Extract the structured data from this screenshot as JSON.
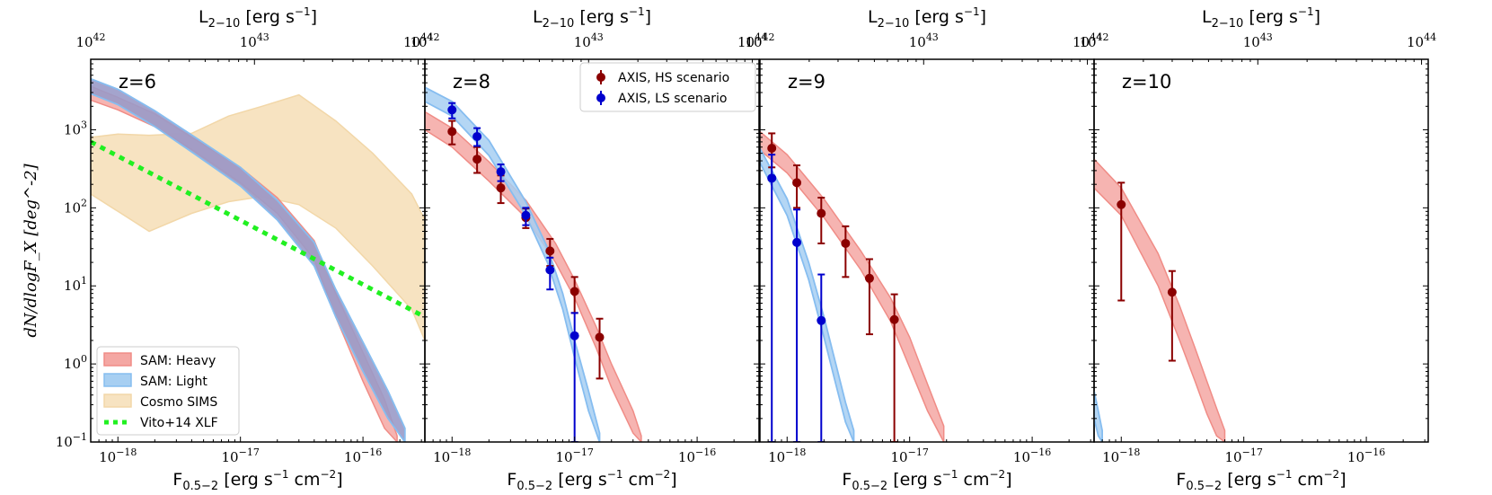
{
  "chart_data": {
    "type": "line",
    "title": "",
    "ylabel": "dN/dlogF_X [deg^-2]",
    "yscale": "log",
    "ylim": [
      0.1,
      8000
    ],
    "xscale": "log",
    "xlim": [
      6e-19,
      3.2e-16
    ],
    "top_xlim": [
      1e+42,
      1e+44
    ],
    "xlabel_base": "F",
    "xlabel_sub": "0.5−2",
    "xlabel_units": " [erg s",
    "xlabel_units2": " cm",
    "top_label_base": "L",
    "top_label_sub": "2−10",
    "top_label_units": " [erg s",
    "yticks": [
      {
        "value": 0.1,
        "base": "10",
        "exp": "−1"
      },
      {
        "value": 1,
        "base": "10",
        "exp": "0"
      },
      {
        "value": 10,
        "base": "10",
        "exp": "1"
      },
      {
        "value": 100,
        "base": "10",
        "exp": "2"
      },
      {
        "value": 1000,
        "base": "10",
        "exp": "3"
      }
    ],
    "xticks": [
      {
        "value": 1e-18,
        "base": "10",
        "exp": "−18"
      },
      {
        "value": 1e-17,
        "base": "10",
        "exp": "−17"
      },
      {
        "value": 1e-16,
        "base": "10",
        "exp": "−16"
      }
    ],
    "top_ticks": [
      {
        "value": 1e+42,
        "base": "10",
        "exp": "42"
      },
      {
        "value": 1e+43,
        "base": "10",
        "exp": "43"
      },
      {
        "value": 1e+44,
        "base": "10",
        "exp": "44"
      }
    ],
    "panels": [
      {
        "label": "z=6",
        "sam_heavy": {
          "x": [
            6e-19,
            1e-18,
            2e-18,
            4e-18,
            1e-17,
            2e-17,
            4e-17,
            6e-17,
            1e-16,
            1.5e-16,
            1.9e-16
          ],
          "lo": [
            2400,
            1800,
            1100,
            560,
            210,
            85,
            22,
            4,
            0.6,
            0.15,
            0.1
          ],
          "hi": [
            3600,
            2600,
            1600,
            800,
            330,
            135,
            38,
            8,
            1.4,
            0.35,
            0.12
          ]
        },
        "sam_light": {
          "x": [
            6e-19,
            1e-18,
            2e-18,
            4e-18,
            1e-17,
            2e-17,
            4e-17,
            6e-17,
            1e-16,
            1.6e-16,
            2.2e-16
          ],
          "lo": [
            2900,
            2100,
            1100,
            520,
            190,
            70,
            18,
            4,
            0.8,
            0.2,
            0.1
          ],
          "hi": [
            4500,
            3300,
            1750,
            860,
            330,
            125,
            36,
            9,
            1.9,
            0.45,
            0.15
          ]
        },
        "cosmo_sims": {
          "x": [
            6e-19,
            1e-18,
            1.8e-18,
            4e-18,
            8e-18,
            1.5e-17,
            3e-17,
            6e-17,
            1.2e-16,
            2.5e-16,
            3.2e-16
          ],
          "lo": [
            150,
            90,
            50,
            85,
            120,
            140,
            110,
            55,
            18,
            5,
            2
          ],
          "hi": [
            800,
            880,
            850,
            900,
            1500,
            2000,
            2800,
            1300,
            500,
            150,
            70
          ]
        },
        "vito_xlf": {
          "x": [
            6e-19,
            3.2e-16
          ],
          "y": [
            700,
            4
          ]
        }
      },
      {
        "label": "z=8",
        "sam_heavy": {
          "x": [
            6e-19,
            1e-18,
            2e-18,
            4e-18,
            7e-18,
            1e-17,
            1.5e-17,
            2e-17,
            3e-17,
            3.5e-17
          ],
          "lo": [
            1000,
            600,
            220,
            75,
            20,
            7,
            1.6,
            0.5,
            0.13,
            0.1
          ],
          "hi": [
            1700,
            1050,
            390,
            125,
            35,
            12,
            3,
            1,
            0.25,
            0.12
          ]
        },
        "sam_light": {
          "x": [
            6e-19,
            1e-18,
            2e-18,
            4e-18,
            6e-18,
            8e-18,
            1e-17,
            1.3e-17,
            1.6e-17
          ],
          "lo": [
            2300,
            1500,
            470,
            80,
            20,
            5,
            1.2,
            0.25,
            0.1
          ],
          "hi": [
            3500,
            2300,
            730,
            120,
            31,
            8,
            2,
            0.45,
            0.13
          ]
        },
        "points": [
          {
            "series": "AXIS, HS scenario",
            "x": 1e-18,
            "y": 950,
            "lo": 650,
            "hi": 1300
          },
          {
            "series": "AXIS, HS scenario",
            "x": 1.6e-18,
            "y": 420,
            "lo": 280,
            "hi": 600
          },
          {
            "series": "AXIS, HS scenario",
            "x": 2.5e-18,
            "y": 180,
            "lo": 115,
            "hi": 260
          },
          {
            "series": "AXIS, HS scenario",
            "x": 4e-18,
            "y": 75,
            "lo": 55,
            "hi": 98
          },
          {
            "series": "AXIS, HS scenario",
            "x": 6.3e-18,
            "y": 28,
            "lo": 18,
            "hi": 40
          },
          {
            "series": "AXIS, HS scenario",
            "x": 1e-17,
            "y": 8.5,
            "lo": 4.5,
            "hi": 13
          },
          {
            "series": "AXIS, HS scenario",
            "x": 1.6e-17,
            "y": 2.2,
            "lo": 0.65,
            "hi": 3.8
          },
          {
            "series": "AXIS, LS scenario",
            "x": 1e-18,
            "y": 1800,
            "lo": 1400,
            "hi": 2200
          },
          {
            "series": "AXIS, LS scenario",
            "x": 1.6e-18,
            "y": 820,
            "lo": 620,
            "hi": 1050
          },
          {
            "series": "AXIS, LS scenario",
            "x": 2.5e-18,
            "y": 290,
            "lo": 220,
            "hi": 360
          },
          {
            "series": "AXIS, LS scenario",
            "x": 4e-18,
            "y": 80,
            "lo": 60,
            "hi": 100
          },
          {
            "series": "AXIS, LS scenario",
            "x": 6.3e-18,
            "y": 16,
            "lo": 9,
            "hi": 23
          },
          {
            "series": "AXIS, LS scenario",
            "x": 1e-17,
            "y": 2.3,
            "lo": 0.1,
            "hi": 4.5
          }
        ]
      },
      {
        "label": "z=9",
        "sam_heavy": {
          "x": [
            6e-19,
            1e-18,
            2e-18,
            4e-18,
            7e-18,
            1e-17,
            1.4e-17,
            1.9e-17
          ],
          "lo": [
            550,
            280,
            75,
            16,
            3.5,
            0.9,
            0.25,
            0.1
          ],
          "hi": [
            950,
            480,
            130,
            28,
            7,
            2.2,
            0.55,
            0.16
          ]
        },
        "sam_light": {
          "x": [
            6e-19,
            1e-18,
            1.5e-18,
            2e-18,
            2.5e-18,
            3e-18,
            3.5e-18
          ],
          "lo": [
            380,
            80,
            12,
            2.2,
            0.55,
            0.18,
            0.1
          ],
          "hi": [
            580,
            130,
            20,
            4,
            1,
            0.32,
            0.14
          ]
        },
        "points": [
          {
            "series": "AXIS, HS scenario",
            "x": 7.5e-19,
            "y": 580,
            "lo": 330,
            "hi": 900
          },
          {
            "series": "AXIS, HS scenario",
            "x": 1.2e-18,
            "y": 210,
            "lo": 100,
            "hi": 350
          },
          {
            "series": "AXIS, HS scenario",
            "x": 1.9e-18,
            "y": 85,
            "lo": 35,
            "hi": 135
          },
          {
            "series": "AXIS, HS scenario",
            "x": 3e-18,
            "y": 35,
            "lo": 13,
            "hi": 58
          },
          {
            "series": "AXIS, HS scenario",
            "x": 4.7e-18,
            "y": 12.5,
            "lo": 2.4,
            "hi": 22
          },
          {
            "series": "AXIS, HS scenario",
            "x": 7.5e-18,
            "y": 3.7,
            "lo": 0.1,
            "hi": 7.8
          },
          {
            "series": "AXIS, LS scenario",
            "x": 7.5e-19,
            "y": 240,
            "lo": 0.1,
            "hi": 480
          },
          {
            "series": "AXIS, LS scenario",
            "x": 1.2e-18,
            "y": 36,
            "lo": 0.1,
            "hi": 95
          },
          {
            "series": "AXIS, LS scenario",
            "x": 1.9e-18,
            "y": 3.6,
            "lo": 0.1,
            "hi": 14
          }
        ]
      },
      {
        "label": "z=10",
        "sam_heavy": {
          "x": [
            6e-19,
            1e-18,
            2e-18,
            3e-18,
            4e-18,
            5e-18,
            6e-18,
            7e-18
          ],
          "lo": [
            180,
            80,
            10,
            2,
            0.6,
            0.23,
            0.12,
            0.1
          ],
          "hi": [
            420,
            180,
            26,
            5.5,
            1.6,
            0.6,
            0.27,
            0.14
          ]
        },
        "sam_light": {
          "x": [
            6e-19,
            6.5e-19,
            7e-19
          ],
          "lo": [
            0.2,
            0.12,
            0.1
          ],
          "hi": [
            0.45,
            0.25,
            0.14
          ]
        },
        "points": [
          {
            "series": "AXIS, HS scenario",
            "x": 1e-18,
            "y": 110,
            "lo": 6.5,
            "hi": 210
          },
          {
            "series": "AXIS, HS scenario",
            "x": 2.6e-18,
            "y": 8.3,
            "lo": 1.1,
            "hi": 15.5
          }
        ]
      }
    ],
    "legend_models": [
      {
        "name": "SAM: Heavy",
        "color": "#f4a7a3",
        "edge": "#f08c86"
      },
      {
        "name": "SAM: Light",
        "color": "#a7cff2",
        "edge": "#86bdf0"
      },
      {
        "name": "Cosmo SIMS",
        "color": "#f7e3c1",
        "edge": "#f2d7a8"
      },
      {
        "name": "Vito+14 XLF",
        "color": "#21f021"
      }
    ],
    "legend_points": [
      {
        "name": "AXIS, HS scenario",
        "color": "#8b0000"
      },
      {
        "name": "AXIS, LS scenario",
        "color": "#0000cd"
      }
    ],
    "overlap_color": "#9a9ac8"
  }
}
